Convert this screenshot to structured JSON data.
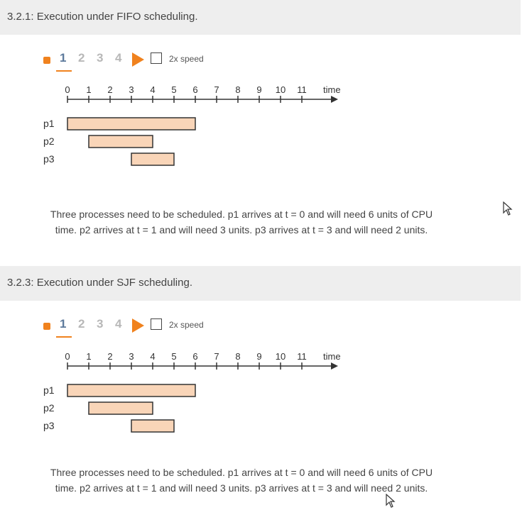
{
  "sections": [
    {
      "title": "3.2.1: Execution under FIFO scheduling.",
      "steps": [
        "1",
        "2",
        "3",
        "4"
      ],
      "speed_label": "2x speed",
      "axis_label": "time",
      "ticks": [
        "0",
        "1",
        "2",
        "3",
        "4",
        "5",
        "6",
        "7",
        "8",
        "9",
        "10",
        "11"
      ],
      "processes": [
        {
          "name": "p1",
          "start": 0,
          "end": 6
        },
        {
          "name": "p2",
          "start": 1,
          "end": 4
        },
        {
          "name": "p3",
          "start": 3,
          "end": 5
        }
      ],
      "description_line1": "Three processes need to be scheduled. p1 arrives at t = 0 and will need 6 units of CPU",
      "description_line2": "time. p2 arrives at t = 1 and will need 3 units. p3 arrives at t = 3 and will need 2 units."
    },
    {
      "title": "3.2.3: Execution under SJF scheduling.",
      "steps": [
        "1",
        "2",
        "3",
        "4"
      ],
      "speed_label": "2x speed",
      "axis_label": "time",
      "ticks": [
        "0",
        "1",
        "2",
        "3",
        "4",
        "5",
        "6",
        "7",
        "8",
        "9",
        "10",
        "11"
      ],
      "processes": [
        {
          "name": "p1",
          "start": 0,
          "end": 6
        },
        {
          "name": "p2",
          "start": 1,
          "end": 4
        },
        {
          "name": "p3",
          "start": 3,
          "end": 5
        }
      ],
      "description_line1": "Three processes need to be scheduled. p1 arrives at t = 0 and will need 6 units of CPU",
      "description_line2": "time. p2 arrives at t = 1 and will need 3 units. p3 arrives at t = 3 and will need 2 units."
    }
  ],
  "colors": {
    "accent": "#f0821e",
    "bar_fill": "#f9d5b8",
    "bar_stroke": "#333333",
    "header_bg": "#eeeeee",
    "active_step": "#5d7a9c",
    "inactive_step": "#b8b8b8"
  },
  "icons": {
    "stop": "stop-icon",
    "play": "play-icon",
    "cursor": "mouse-cursor-icon"
  }
}
